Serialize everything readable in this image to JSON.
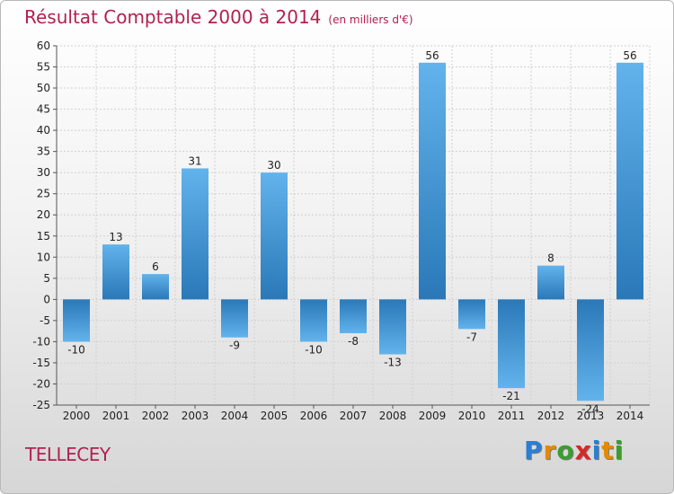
{
  "title": "Résultat Comptable 2000 à 2014",
  "unit": "(en milliers d'€)",
  "commune": "TELLECEY",
  "logo": [
    "P",
    "r",
    "o",
    "x",
    "i",
    "t",
    "i"
  ],
  "logo_colors": [
    "#2a7fd4",
    "#e58a00",
    "#3a9e2f",
    "#d62828",
    "#2a7fd4",
    "#e58a00",
    "#3a9e2f"
  ],
  "chart_data": {
    "type": "bar",
    "categories": [
      "2000",
      "2001",
      "2002",
      "2003",
      "2004",
      "2005",
      "2006",
      "2007",
      "2008",
      "2009",
      "2010",
      "2011",
      "2012",
      "2013",
      "2014"
    ],
    "values": [
      -10,
      13,
      6,
      31,
      -9,
      30,
      -10,
      -8,
      -13,
      56,
      -7,
      -21,
      8,
      -24,
      56
    ],
    "ylim": [
      -25,
      60
    ],
    "yticks": [
      -25,
      -20,
      -15,
      -10,
      -5,
      0,
      5,
      10,
      15,
      20,
      25,
      30,
      35,
      40,
      45,
      50,
      55,
      60
    ],
    "title": "Résultat Comptable 2000 à 2014",
    "xlabel": "",
    "ylabel": "",
    "grid": true,
    "bar_color": "#3d95d8",
    "bar_color_light": "#62b3ec",
    "bar_color_dark": "#2a78b8"
  }
}
